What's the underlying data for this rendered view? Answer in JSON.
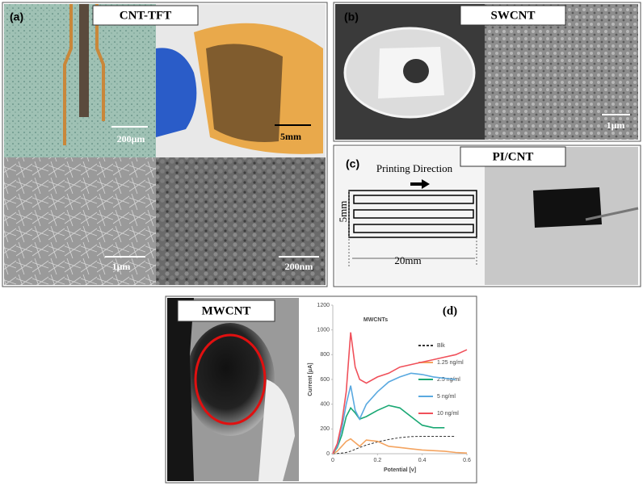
{
  "panels": {
    "a": {
      "label": "(a)",
      "title": "CNT-TFT",
      "scale_bars": [
        "200μm",
        "5mm",
        "1μm",
        "200nm"
      ]
    },
    "b": {
      "label": "(b)",
      "title": "SWCNT",
      "scale_bars": [
        "1μm"
      ]
    },
    "c": {
      "label": "(c)",
      "title": "PI/CNT",
      "printing_direction": "Printing Direction",
      "height": "5mm",
      "width": "20mm"
    },
    "d": {
      "label": "(d)",
      "title": "MWCNT"
    }
  },
  "chart_data": {
    "type": "line",
    "title": "MWCNTs",
    "x_label": "Potential [v]",
    "y_label": "Current [μA]",
    "x": [
      0,
      0.02,
      0.04,
      0.06,
      0.08,
      0.1,
      0.12,
      0.15,
      0.2,
      0.25,
      0.3,
      0.35,
      0.4,
      0.45,
      0.5,
      0.55,
      0.6
    ],
    "series": [
      {
        "name": "Blk",
        "color": "#333333",
        "dashed": true,
        "values": [
          0,
          2,
          5,
          10,
          20,
          35,
          50,
          70,
          95,
          115,
          130,
          138,
          140,
          140,
          140,
          140,
          null
        ]
      },
      {
        "name": "1.25 ng/ml",
        "color": "#f4a460",
        "dashed": false,
        "values": [
          0,
          20,
          60,
          100,
          120,
          90,
          60,
          110,
          100,
          60,
          50,
          40,
          30,
          25,
          20,
          10,
          5
        ]
      },
      {
        "name": "2.5 ng/ml",
        "color": "#1aa874",
        "dashed": false,
        "values": [
          0,
          50,
          150,
          300,
          370,
          330,
          280,
          300,
          350,
          390,
          370,
          300,
          230,
          210,
          210,
          null,
          null
        ]
      },
      {
        "name": "5 ng/ml",
        "color": "#5aa9e0",
        "dashed": false,
        "values": [
          0,
          60,
          200,
          400,
          550,
          350,
          280,
          400,
          500,
          580,
          620,
          650,
          640,
          620,
          610,
          600,
          null
        ]
      },
      {
        "name": "10 ng/ml",
        "color": "#f0505a",
        "dashed": false,
        "values": [
          0,
          80,
          250,
          500,
          980,
          700,
          600,
          570,
          620,
          650,
          700,
          720,
          740,
          760,
          780,
          800,
          840
        ]
      }
    ],
    "xlim": [
      0,
      0.6
    ],
    "xticks": [
      0,
      0.2,
      0.4,
      0.6
    ],
    "ylim": [
      0,
      1200
    ],
    "yticks": [
      0,
      200,
      400,
      600,
      800,
      1000,
      1200
    ]
  }
}
